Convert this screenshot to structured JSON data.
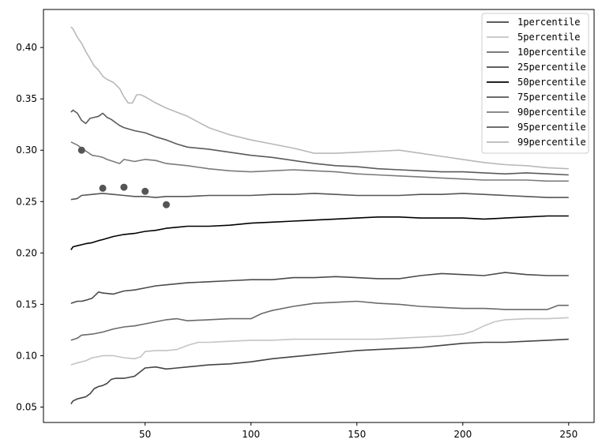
{
  "chart_data": {
    "type": "line",
    "title": "",
    "xlabel": "",
    "ylabel": "",
    "xlim": [
      2,
      262
    ],
    "ylim": [
      0.035,
      0.437
    ],
    "xticks": [
      50,
      100,
      150,
      200,
      250
    ],
    "yticks": [
      0.05,
      0.1,
      0.15,
      0.2,
      0.25,
      0.3,
      0.35,
      0.4
    ],
    "ytick_labels": [
      "0.05",
      "0.10",
      "0.15",
      "0.20",
      "0.25",
      "0.30",
      "0.35",
      "0.40"
    ],
    "grid": false,
    "legend_position": "top-right",
    "series": [
      {
        "name": "1percentile",
        "color": "#444444",
        "x": [
          15,
          16,
          18,
          20,
          22,
          24,
          26,
          28,
          30,
          32,
          34,
          36,
          38,
          40,
          45,
          50,
          55,
          60,
          65,
          70,
          75,
          80,
          90,
          100,
          110,
          120,
          130,
          140,
          150,
          160,
          170,
          180,
          190,
          200,
          210,
          220,
          230,
          240,
          250
        ],
        "y": [
          0.053,
          0.056,
          0.058,
          0.059,
          0.06,
          0.063,
          0.068,
          0.07,
          0.071,
          0.073,
          0.077,
          0.078,
          0.078,
          0.078,
          0.08,
          0.088,
          0.089,
          0.087,
          0.088,
          0.089,
          0.09,
          0.091,
          0.092,
          0.094,
          0.097,
          0.099,
          0.101,
          0.103,
          0.105,
          0.106,
          0.107,
          0.108,
          0.11,
          0.112,
          0.113,
          0.113,
          0.114,
          0.115,
          0.116
        ]
      },
      {
        "name": "5percentile",
        "color": "#c4c4c4",
        "x": [
          15,
          18,
          20,
          22,
          25,
          28,
          30,
          35,
          40,
          45,
          48,
          50,
          55,
          60,
          65,
          70,
          75,
          80,
          90,
          100,
          110,
          120,
          130,
          140,
          150,
          160,
          170,
          180,
          190,
          200,
          205,
          210,
          215,
          220,
          230,
          240,
          250
        ],
        "y": [
          0.091,
          0.093,
          0.094,
          0.095,
          0.098,
          0.099,
          0.1,
          0.1,
          0.098,
          0.097,
          0.099,
          0.104,
          0.105,
          0.105,
          0.106,
          0.11,
          0.113,
          0.113,
          0.114,
          0.115,
          0.115,
          0.116,
          0.116,
          0.116,
          0.116,
          0.116,
          0.117,
          0.118,
          0.119,
          0.121,
          0.124,
          0.129,
          0.133,
          0.135,
          0.136,
          0.136,
          0.137
        ]
      },
      {
        "name": "10percentile",
        "color": "#6a6a6a",
        "x": [
          15,
          18,
          20,
          25,
          30,
          35,
          40,
          45,
          50,
          55,
          60,
          65,
          70,
          80,
          90,
          100,
          105,
          110,
          120,
          130,
          140,
          150,
          160,
          170,
          180,
          190,
          200,
          210,
          220,
          230,
          240,
          245,
          250
        ],
        "y": [
          0.115,
          0.117,
          0.12,
          0.121,
          0.123,
          0.126,
          0.128,
          0.129,
          0.131,
          0.133,
          0.135,
          0.136,
          0.134,
          0.135,
          0.136,
          0.136,
          0.141,
          0.144,
          0.148,
          0.151,
          0.152,
          0.153,
          0.151,
          0.15,
          0.148,
          0.147,
          0.146,
          0.146,
          0.145,
          0.145,
          0.145,
          0.149,
          0.149
        ]
      },
      {
        "name": "25percentile",
        "color": "#4a4a4a",
        "x": [
          15,
          18,
          20,
          22,
          25,
          28,
          30,
          35,
          40,
          45,
          50,
          55,
          60,
          70,
          80,
          90,
          100,
          110,
          120,
          130,
          140,
          150,
          160,
          170,
          180,
          190,
          200,
          210,
          220,
          230,
          240,
          250
        ],
        "y": [
          0.151,
          0.153,
          0.153,
          0.154,
          0.156,
          0.162,
          0.161,
          0.16,
          0.163,
          0.164,
          0.166,
          0.168,
          0.169,
          0.171,
          0.172,
          0.173,
          0.174,
          0.174,
          0.176,
          0.176,
          0.177,
          0.176,
          0.175,
          0.175,
          0.178,
          0.18,
          0.179,
          0.178,
          0.181,
          0.179,
          0.178,
          0.178
        ]
      },
      {
        "name": "50percentile",
        "color": "#000000",
        "x": [
          15,
          16,
          18,
          20,
          22,
          25,
          28,
          30,
          35,
          40,
          45,
          50,
          55,
          60,
          65,
          70,
          80,
          90,
          100,
          110,
          120,
          130,
          140,
          150,
          160,
          170,
          180,
          190,
          200,
          210,
          220,
          230,
          240,
          250
        ],
        "y": [
          0.203,
          0.206,
          0.207,
          0.208,
          0.209,
          0.21,
          0.212,
          0.213,
          0.216,
          0.218,
          0.219,
          0.221,
          0.222,
          0.224,
          0.225,
          0.226,
          0.226,
          0.227,
          0.229,
          0.23,
          0.231,
          0.232,
          0.233,
          0.234,
          0.235,
          0.235,
          0.234,
          0.234,
          0.234,
          0.233,
          0.234,
          0.235,
          0.236,
          0.236
        ]
      },
      {
        "name": "75percentile",
        "color": "#555555",
        "x": [
          15,
          18,
          20,
          25,
          30,
          35,
          40,
          45,
          50,
          55,
          60,
          70,
          80,
          90,
          100,
          110,
          120,
          130,
          140,
          150,
          160,
          170,
          180,
          190,
          200,
          210,
          220,
          230,
          240,
          250
        ],
        "y": [
          0.252,
          0.253,
          0.256,
          0.257,
          0.258,
          0.257,
          0.256,
          0.255,
          0.255,
          0.254,
          0.255,
          0.255,
          0.256,
          0.256,
          0.256,
          0.257,
          0.257,
          0.258,
          0.257,
          0.256,
          0.256,
          0.256,
          0.257,
          0.257,
          0.258,
          0.257,
          0.256,
          0.255,
          0.254,
          0.254
        ]
      },
      {
        "name": "90percentile",
        "color": "#7a7a7a",
        "x": [
          15,
          18,
          20,
          25,
          28,
          30,
          32,
          35,
          38,
          40,
          45,
          50,
          55,
          60,
          70,
          80,
          90,
          100,
          110,
          120,
          130,
          140,
          150,
          160,
          170,
          180,
          190,
          200,
          210,
          220,
          230,
          240,
          250
        ],
        "y": [
          0.308,
          0.305,
          0.302,
          0.295,
          0.294,
          0.293,
          0.291,
          0.289,
          0.287,
          0.291,
          0.289,
          0.291,
          0.29,
          0.287,
          0.285,
          0.282,
          0.28,
          0.279,
          0.28,
          0.281,
          0.28,
          0.279,
          0.277,
          0.276,
          0.275,
          0.274,
          0.273,
          0.272,
          0.271,
          0.271,
          0.271,
          0.27,
          0.27
        ]
      },
      {
        "name": "95percentile",
        "color": "#5a5a5a",
        "x": [
          15,
          16,
          18,
          20,
          22,
          24,
          26,
          28,
          30,
          32,
          34,
          36,
          38,
          40,
          45,
          50,
          55,
          60,
          65,
          70,
          80,
          90,
          100,
          110,
          120,
          130,
          140,
          150,
          160,
          170,
          180,
          190,
          200,
          210,
          220,
          230,
          240,
          250
        ],
        "y": [
          0.337,
          0.339,
          0.336,
          0.329,
          0.326,
          0.331,
          0.332,
          0.333,
          0.336,
          0.332,
          0.33,
          0.327,
          0.324,
          0.322,
          0.319,
          0.317,
          0.313,
          0.31,
          0.306,
          0.303,
          0.301,
          0.298,
          0.295,
          0.293,
          0.29,
          0.287,
          0.285,
          0.284,
          0.282,
          0.281,
          0.28,
          0.279,
          0.279,
          0.278,
          0.277,
          0.278,
          0.277,
          0.276
        ]
      },
      {
        "name": "99percentile",
        "color": "#b8b8b8",
        "x": [
          15,
          16,
          18,
          20,
          22,
          24,
          26,
          28,
          30,
          32,
          35,
          38,
          40,
          42,
          44,
          46,
          48,
          50,
          55,
          60,
          65,
          70,
          80,
          90,
          100,
          110,
          120,
          130,
          140,
          150,
          160,
          170,
          180,
          190,
          200,
          210,
          220,
          230,
          240,
          250
        ],
        "y": [
          0.42,
          0.418,
          0.41,
          0.404,
          0.396,
          0.389,
          0.382,
          0.378,
          0.372,
          0.369,
          0.366,
          0.36,
          0.352,
          0.346,
          0.346,
          0.354,
          0.354,
          0.352,
          0.346,
          0.341,
          0.337,
          0.333,
          0.322,
          0.315,
          0.31,
          0.306,
          0.302,
          0.297,
          0.297,
          0.298,
          0.299,
          0.3,
          0.297,
          0.294,
          0.291,
          0.288,
          0.286,
          0.285,
          0.283,
          0.282
        ]
      }
    ],
    "scatter": {
      "color": "#555555",
      "x": [
        20,
        30,
        40,
        50,
        60
      ],
      "y": [
        0.3,
        0.263,
        0.264,
        0.26,
        0.247
      ]
    }
  }
}
